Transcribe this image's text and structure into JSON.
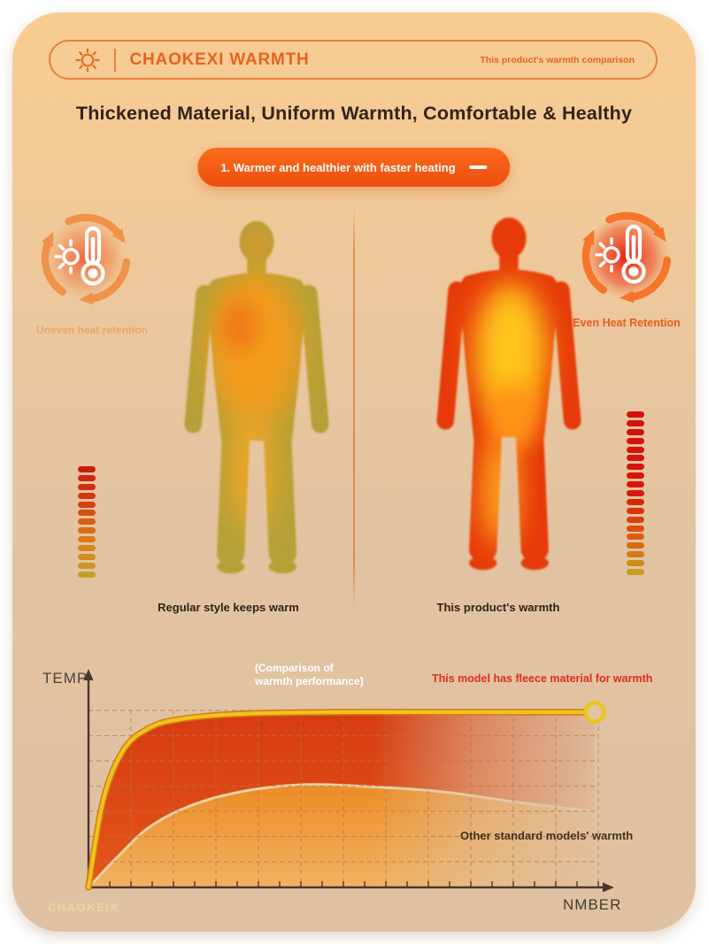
{
  "header": {
    "brand": "CHAOKEXI WARMTH",
    "tagline": "This product's warmth comparison",
    "sun_icon": "sun-outline",
    "accent_color": "#E8631D"
  },
  "title": "Thickened Material, Uniform Warmth, Comfortable & Healthy",
  "feature_button": {
    "label": "1. Warmer and healthier with faster heating",
    "minus_icon": "minus-dash",
    "color_top": "#FA6C1D",
    "color_bottom": "#EE4E0D"
  },
  "comparison": {
    "left": {
      "icon": "thermometer-sun-cycle-icon",
      "icon_label": "Uneven heat retention",
      "caption": "Regular style keeps warm",
      "body_edge_color": "#B4A138",
      "body_core_color": "#F29B1E"
    },
    "right": {
      "icon": "thermometer-sun-cycle-icon",
      "icon_label": "Even Heat Retention",
      "caption": "This product's warmth",
      "body_edge_color": "#E63A0A",
      "body_core_color": "#FFC51E"
    }
  },
  "heat_bars": {
    "left": {
      "segments": 13,
      "colors": [
        "#c81d0e",
        "#d4420f",
        "#dc7a16",
        "#c6a026"
      ]
    },
    "right": {
      "segments": 19,
      "colors": [
        "#d80f06",
        "#d81208",
        "#d8180a",
        "#e0540f",
        "#c89c1e"
      ]
    }
  },
  "chart_data": {
    "type": "area",
    "title": "(Comparison of warmth performance)",
    "xlabel": "NMBER",
    "ylabel": "TEMP",
    "grid": "dashed",
    "legend_position": "inline-labels",
    "xlim": [
      0,
      100
    ],
    "ylim": [
      0,
      100
    ],
    "series": [
      {
        "name": "This model has fleece material for warmth",
        "color": "#ECC51C",
        "label_color": "#DE2F1D",
        "trend": "rises very fast, then holds a high plateau with end ring marker",
        "x": [
          0,
          3,
          7,
          12,
          18,
          30,
          50,
          75,
          100
        ],
        "y": [
          0,
          50,
          78,
          90,
          95,
          98,
          99,
          99,
          99
        ]
      },
      {
        "name": "Other standard models' warmth",
        "color": "#EAD2A4",
        "label_color": "#43301F",
        "trend": "rises slowly to a mid level then slowly declines",
        "x": [
          0,
          6,
          12,
          20,
          30,
          42,
          55,
          70,
          85,
          100
        ],
        "y": [
          0,
          18,
          34,
          46,
          54,
          58,
          57,
          54,
          48,
          43
        ]
      }
    ]
  },
  "watermark": "CHAOKEIX",
  "colors": {
    "card_top": "#F8CD92",
    "card_bottom": "#DFC2A3",
    "header_outline": "#E8813F",
    "title_text": "#33241A",
    "chart_axis": "#4A382A",
    "grid_line": "#B5764A",
    "area_red": "#D63B10",
    "area_orange": "#EC8C26"
  }
}
